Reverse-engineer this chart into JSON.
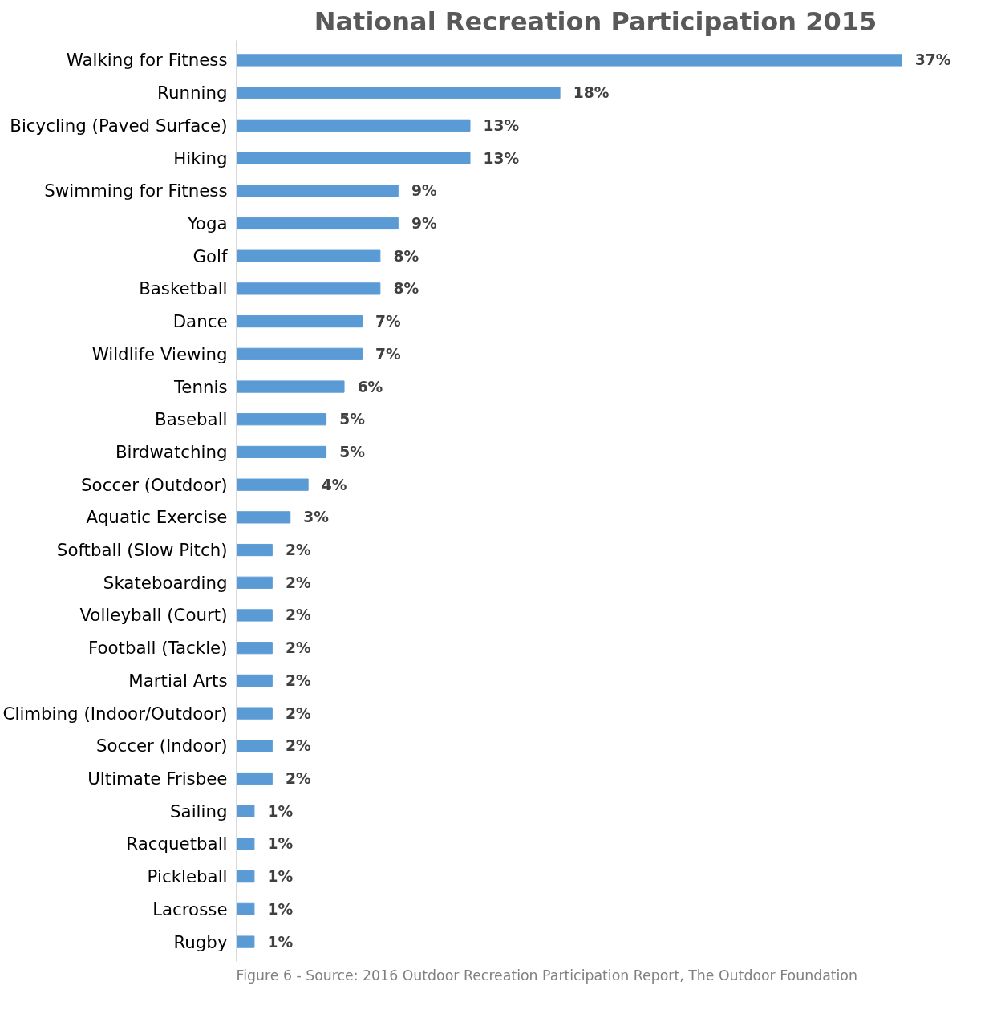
{
  "chart_data": {
    "type": "bar",
    "orientation": "horizontal",
    "title": "National Recreation Participation 2015",
    "categories": [
      "Walking for Fitness",
      "Running",
      "Bicycling (Paved Surface)",
      "Hiking",
      "Swimming for Fitness",
      "Yoga",
      "Golf",
      "Basketball",
      "Dance",
      "Wildlife Viewing",
      "Tennis",
      "Baseball",
      "Birdwatching",
      "Soccer (Outdoor)",
      "Aquatic Exercise",
      "Softball (Slow Pitch)",
      "Skateboarding",
      "Volleyball (Court)",
      "Football (Tackle)",
      "Martial Arts",
      "Climbing (Indoor/Outdoor)",
      "Soccer (Indoor)",
      "Ultimate Frisbee",
      "Sailing",
      "Racquetball",
      "Pickleball",
      "Lacrosse",
      "Rugby"
    ],
    "values": [
      37,
      18,
      13,
      13,
      9,
      9,
      8,
      8,
      7,
      7,
      6,
      5,
      5,
      4,
      3,
      2,
      2,
      2,
      2,
      2,
      2,
      2,
      2,
      1,
      1,
      1,
      1,
      1
    ],
    "value_labels": [
      "37%",
      "18%",
      "13%",
      "13%",
      "9%",
      "9%",
      "8%",
      "8%",
      "7%",
      "7%",
      "6%",
      "5%",
      "5%",
      "4%",
      "3%",
      "2%",
      "2%",
      "2%",
      "2%",
      "2%",
      "2%",
      "2%",
      "2%",
      "1%",
      "1%",
      "1%",
      "1%",
      "1%"
    ],
    "color": "#5b9bd5",
    "grid": false,
    "tick_labels": "y",
    "annotations": [
      "Figure 6 - Source: 2016 Outdoor Recreation Participation Report, The Outdoor Foundation"
    ]
  }
}
